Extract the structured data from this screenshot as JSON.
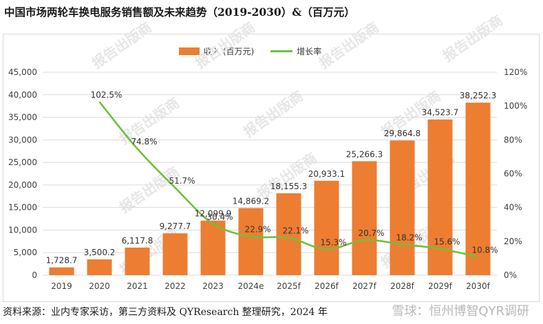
{
  "header": {
    "title": "中国市场两轮车换电服务销售额及未来趋势（2019-2030）&（百万元）"
  },
  "footer": {
    "source": "资料来源：业内专家采访，第三方资料及 QYResearch 整理研究，2024 年",
    "credit": "雪球：恒州博智QYR调研"
  },
  "watermark": {
    "text": "报告出版商"
  },
  "colors": {
    "bar": "#ed7d31",
    "line": "#70c03c",
    "grid": "#d9d9d9"
  },
  "chart_data": {
    "type": "bar",
    "categories": [
      "2019",
      "2020",
      "2021",
      "2022",
      "2023",
      "2024e",
      "2025f",
      "2026f",
      "2027f",
      "2028f",
      "2029f",
      "2030f"
    ],
    "series": [
      {
        "name": "收入 (百万元)",
        "type": "bar",
        "axis": "left",
        "values": [
          1728.7,
          3500.2,
          6117.8,
          9277.7,
          12099.9,
          14869.2,
          18155.3,
          20933.1,
          25266.3,
          29864.8,
          34523.7,
          38252.3
        ],
        "labels": [
          "1,728.7",
          "3,500.2",
          "6,117.8",
          "9,277.7",
          "12,099.9",
          "14,869.2",
          "18,155.3",
          "20,933.1",
          "25,266.3",
          "29,864.8",
          "34,523.7",
          "38,252.3"
        ]
      },
      {
        "name": "增长率",
        "type": "line",
        "axis": "right",
        "values": [
          null,
          102.5,
          74.8,
          51.7,
          30.4,
          22.9,
          22.1,
          15.3,
          20.7,
          18.2,
          15.6,
          10.8
        ],
        "labels": [
          "",
          "102.5%",
          "74.8%",
          "51.7%",
          "30.4%",
          "22.9%",
          "22.1%",
          "15.3%",
          "20.7%",
          "18.2%",
          "15.6%",
          "10.8%"
        ]
      }
    ],
    "y_left": {
      "ylim": [
        0,
        45000
      ],
      "ticks": [
        0,
        5000,
        10000,
        15000,
        20000,
        25000,
        30000,
        35000,
        40000,
        45000
      ],
      "tick_labels": [
        "0",
        "5,000",
        "10,000",
        "15,000",
        "20,000",
        "25,000",
        "30,000",
        "35,000",
        "40,000",
        "45,000"
      ]
    },
    "y_right": {
      "ylim": [
        0,
        120
      ],
      "ticks": [
        0,
        20,
        40,
        60,
        80,
        100,
        120
      ],
      "tick_labels": [
        "0%",
        "20%",
        "40%",
        "60%",
        "80%",
        "100%",
        "120%"
      ]
    },
    "grid": true,
    "legend_position": "top"
  }
}
